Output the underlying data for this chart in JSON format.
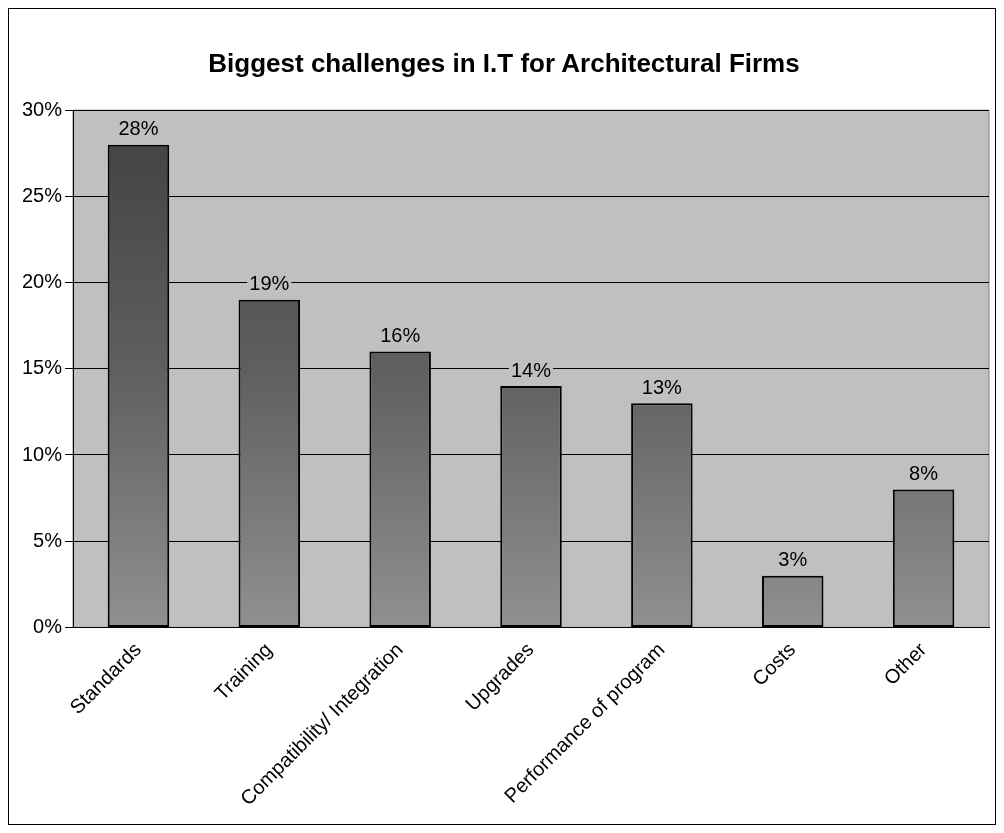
{
  "chart_data": {
    "type": "bar",
    "title": "Biggest challenges in I.T for Architectural Firms",
    "categories": [
      "Standards",
      "Training",
      "Compatibility/ Integration",
      "Upgrades",
      "Performance of program",
      "Costs",
      "Other"
    ],
    "values": [
      28,
      19,
      16,
      14,
      13,
      3,
      8
    ],
    "value_labels": [
      "28%",
      "19%",
      "16%",
      "14%",
      "13%",
      "3%",
      "8%"
    ],
    "color": "#5f5f5f",
    "ylim": [
      0,
      30
    ],
    "yticks": [
      {
        "value": 0,
        "label": "0%"
      },
      {
        "value": 5,
        "label": "5%"
      },
      {
        "value": 10,
        "label": "10%"
      },
      {
        "value": 15,
        "label": "15%"
      },
      {
        "value": 20,
        "label": "20%"
      },
      {
        "value": 25,
        "label": "25%"
      },
      {
        "value": 30,
        "label": "30%"
      }
    ],
    "grid": "y",
    "legend": false
  }
}
